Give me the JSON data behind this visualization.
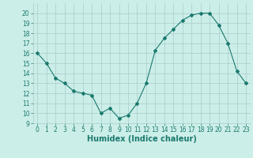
{
  "x": [
    0,
    1,
    2,
    3,
    4,
    5,
    6,
    7,
    8,
    9,
    10,
    11,
    12,
    13,
    14,
    15,
    16,
    17,
    18,
    19,
    20,
    21,
    22,
    23
  ],
  "y": [
    16,
    15,
    13.5,
    13,
    12.2,
    12,
    11.8,
    10,
    10.5,
    9.5,
    9.8,
    11,
    13,
    16.3,
    17.5,
    18.4,
    19.3,
    19.8,
    20,
    20,
    18.8,
    17,
    14.2,
    13
  ],
  "line_color": "#1a7a6e",
  "marker": "D",
  "marker_size": 2.0,
  "bg_color": "#cceee8",
  "grid_color": "#aacccc",
  "xlabel": "Humidex (Indice chaleur)",
  "ylim": [
    9,
    21
  ],
  "xlim": [
    -0.5,
    23.5
  ],
  "yticks": [
    9,
    10,
    11,
    12,
    13,
    14,
    15,
    16,
    17,
    18,
    19,
    20
  ],
  "xticks": [
    0,
    1,
    2,
    3,
    4,
    5,
    6,
    7,
    8,
    9,
    10,
    11,
    12,
    13,
    14,
    15,
    16,
    17,
    18,
    19,
    20,
    21,
    22,
    23
  ],
  "tick_label_size": 5.5,
  "xlabel_size": 7.0
}
